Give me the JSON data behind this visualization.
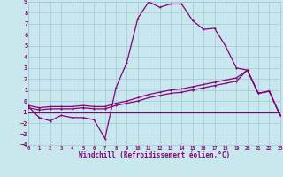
{
  "background_color": "#c8e8ee",
  "grid_color": "#a0c8d8",
  "line_color": "#880077",
  "xlabel": "Windchill (Refroidissement éolien,°C)",
  "xlim": [
    0,
    23
  ],
  "ylim": [
    -4,
    9
  ],
  "xticks": [
    0,
    1,
    2,
    3,
    4,
    5,
    6,
    7,
    8,
    9,
    10,
    11,
    12,
    13,
    14,
    15,
    16,
    17,
    18,
    19,
    20,
    21,
    22,
    23
  ],
  "yticks": [
    -4,
    -3,
    -2,
    -1,
    0,
    1,
    2,
    3,
    4,
    5,
    6,
    7,
    8,
    9
  ],
  "main_line_x": [
    0,
    1,
    2,
    3,
    4,
    5,
    6,
    7,
    8,
    9,
    10,
    11,
    12,
    13,
    14,
    15,
    16,
    17,
    18,
    19,
    20,
    21,
    22,
    23
  ],
  "main_line_y": [
    -0.5,
    -1.5,
    -1.8,
    -1.3,
    -1.5,
    -1.5,
    -1.7,
    -3.4,
    1.2,
    3.5,
    7.5,
    9.0,
    8.5,
    8.8,
    8.8,
    7.3,
    6.5,
    6.6,
    5.0,
    3.0,
    2.8,
    0.7,
    0.9,
    -1.3
  ],
  "line2_x": [
    0,
    1,
    2,
    3,
    4,
    5,
    6,
    7,
    8,
    9,
    10,
    11,
    12,
    13,
    14,
    15,
    16,
    17,
    18,
    19,
    20,
    21,
    22,
    23
  ],
  "line2_y": [
    -0.4,
    -0.6,
    -0.5,
    -0.5,
    -0.5,
    -0.4,
    -0.5,
    -0.5,
    -0.2,
    0.0,
    0.3,
    0.6,
    0.8,
    1.0,
    1.1,
    1.3,
    1.5,
    1.7,
    1.9,
    2.1,
    2.8,
    0.7,
    0.9,
    -1.3
  ],
  "line3_x": [
    0,
    1,
    2,
    3,
    4,
    5,
    6,
    7,
    8,
    9,
    10,
    11,
    12,
    13,
    14,
    15,
    16,
    17,
    18,
    19,
    20,
    21,
    22,
    23
  ],
  "line3_y": [
    -0.6,
    -0.8,
    -0.7,
    -0.7,
    -0.7,
    -0.6,
    -0.7,
    -0.7,
    -0.4,
    -0.2,
    0.0,
    0.3,
    0.5,
    0.7,
    0.8,
    1.0,
    1.2,
    1.4,
    1.6,
    1.8,
    2.8,
    0.7,
    0.9,
    -1.3
  ],
  "flat_line_x": [
    0,
    23
  ],
  "flat_line_y": [
    -1.0,
    -1.0
  ]
}
